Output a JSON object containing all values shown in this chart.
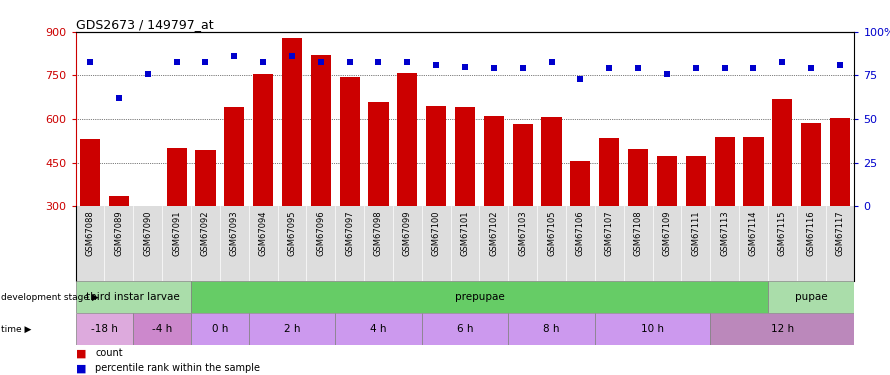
{
  "title": "GDS2673 / 149797_at",
  "samples": [
    "GSM67088",
    "GSM67089",
    "GSM67090",
    "GSM67091",
    "GSM67092",
    "GSM67093",
    "GSM67094",
    "GSM67095",
    "GSM67096",
    "GSM67097",
    "GSM67098",
    "GSM67099",
    "GSM67100",
    "GSM67101",
    "GSM67102",
    "GSM67103",
    "GSM67105",
    "GSM67106",
    "GSM67107",
    "GSM67108",
    "GSM67109",
    "GSM67111",
    "GSM67113",
    "GSM67114",
    "GSM67115",
    "GSM67116",
    "GSM67117"
  ],
  "counts": [
    530,
    335,
    300,
    500,
    495,
    640,
    755,
    880,
    820,
    745,
    660,
    760,
    645,
    640,
    610,
    583,
    608,
    455,
    535,
    498,
    472,
    472,
    537,
    537,
    668,
    588,
    602
  ],
  "percentile": [
    83,
    62,
    76,
    83,
    83,
    86,
    83,
    86,
    83,
    83,
    83,
    83,
    81,
    80,
    79,
    79,
    83,
    73,
    79,
    79,
    76,
    79,
    79,
    79,
    83,
    79,
    81
  ],
  "bar_color": "#cc0000",
  "dot_color": "#0000cc",
  "ylim_left": [
    300,
    900
  ],
  "ylim_right": [
    0,
    100
  ],
  "yticks_left": [
    300,
    450,
    600,
    750,
    900
  ],
  "yticks_right": [
    0,
    25,
    50,
    75,
    100
  ],
  "ytick_labels_right": [
    "0",
    "25",
    "50",
    "75",
    "100%"
  ],
  "grid_values": [
    450,
    600,
    750
  ],
  "dev_stages": [
    {
      "label": "third instar larvae",
      "start": 0,
      "end": 4,
      "color": "#aaddaa"
    },
    {
      "label": "prepupae",
      "start": 4,
      "end": 24,
      "color": "#66cc66"
    },
    {
      "label": "pupae",
      "start": 24,
      "end": 27,
      "color": "#aaddaa"
    }
  ],
  "time_labels": [
    {
      "label": "-18 h",
      "start": 0,
      "end": 2,
      "color": "#ddaadd"
    },
    {
      "label": "-4 h",
      "start": 2,
      "end": 4,
      "color": "#cc88cc"
    },
    {
      "label": "0 h",
      "start": 4,
      "end": 6,
      "color": "#cc99ee"
    },
    {
      "label": "2 h",
      "start": 6,
      "end": 9,
      "color": "#cc99ee"
    },
    {
      "label": "4 h",
      "start": 9,
      "end": 12,
      "color": "#cc99ee"
    },
    {
      "label": "6 h",
      "start": 12,
      "end": 15,
      "color": "#cc99ee"
    },
    {
      "label": "8 h",
      "start": 15,
      "end": 18,
      "color": "#cc99ee"
    },
    {
      "label": "10 h",
      "start": 18,
      "end": 22,
      "color": "#cc99ee"
    },
    {
      "label": "12 h",
      "start": 22,
      "end": 27,
      "color": "#bb88bb"
    }
  ],
  "axis_color_left": "#cc0000",
  "axis_color_right": "#0000cc",
  "background_color": "#ffffff",
  "sample_bg_color": "#dddddd",
  "fig_width": 8.9,
  "fig_height": 3.75
}
